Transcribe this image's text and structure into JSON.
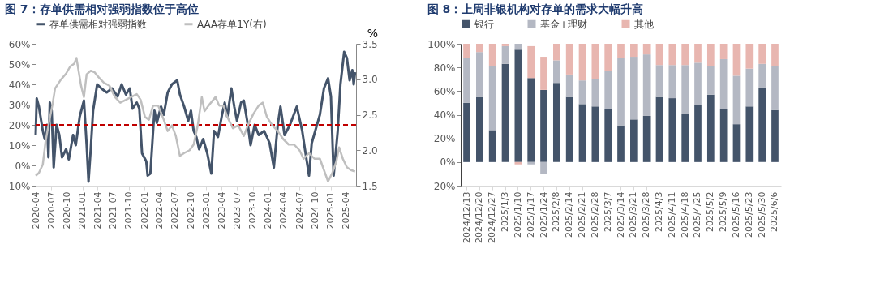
{
  "chart_data": [
    {
      "type": "line",
      "title": "图 7：存单供需相对强弱指数位于高位",
      "y2label": "%",
      "legend": "top",
      "grid": false,
      "line_style": "solid",
      "marker": "none",
      "xlim": [
        "2020-04-01",
        "2025-05-31"
      ],
      "xticks": [
        "2020-04",
        "2020-07",
        "2020-10",
        "2021-01",
        "2021-04",
        "2021-07",
        "2021-10",
        "2022-01",
        "2022-04",
        "2022-07",
        "2022-10",
        "2023-01",
        "2023-04",
        "2023-07",
        "2023-10",
        "2024-01",
        "2024-04",
        "2024-07",
        "2024-10",
        "2025-01",
        "2025-04"
      ],
      "ylim": [
        -10,
        60
      ],
      "yticks": [
        {
          "value": -10,
          "label": "-10%"
        },
        {
          "value": 0,
          "label": "0%"
        },
        {
          "value": 10,
          "label": "10%"
        },
        {
          "value": 20,
          "label": "20%"
        },
        {
          "value": 30,
          "label": "30%"
        },
        {
          "value": 40,
          "label": "40%"
        },
        {
          "value": 50,
          "label": "50%"
        },
        {
          "value": 60,
          "label": "60%"
        }
      ],
      "y2lim": [
        1.5,
        3.5
      ],
      "y2ticks": [
        {
          "value": 1.5,
          "label": "1.5"
        },
        {
          "value": 2,
          "label": "2.0"
        },
        {
          "value": 2.5,
          "label": "2.5"
        },
        {
          "value": 3,
          "label": "3.0"
        },
        {
          "value": 3.5,
          "label": "3.5"
        }
      ],
      "ref_lines": [
        {
          "axis": "y",
          "value": 20,
          "color": "#c00000",
          "line_style": "dashed"
        }
      ],
      "series": [
        {
          "name": "存单供需相对强弱指数",
          "color": "#44546a",
          "x": [
            "2020-04-01",
            "2020-04-07",
            "2020-04-20",
            "2020-05-13",
            "2020-05-24",
            "2020-06-07",
            "2020-06-15",
            "2020-06-23",
            "2020-07-04",
            "2020-07-16",
            "2020-08-02",
            "2020-08-18",
            "2020-09-03",
            "2020-09-27",
            "2020-10-13",
            "2020-11-07",
            "2020-11-23",
            "2020-12-16",
            "2021-01-10",
            "2021-01-26",
            "2021-02-06",
            "2021-02-19",
            "2021-03-05",
            "2021-03-29",
            "2021-04-22",
            "2021-05-24",
            "2021-06-25",
            "2021-07-27",
            "2021-08-20",
            "2021-09-14",
            "2021-10-07",
            "2021-10-23",
            "2021-11-17",
            "2021-12-02",
            "2021-12-18",
            "2022-01-12",
            "2022-01-20",
            "2022-02-05",
            "2022-03-01",
            "2022-03-15",
            "2022-04-09",
            "2022-04-25",
            "2022-05-18",
            "2022-06-12",
            "2022-07-13",
            "2022-07-29",
            "2022-08-23",
            "2022-09-16",
            "2022-10-02",
            "2022-10-18",
            "2022-11-03",
            "2022-11-19",
            "2022-12-13",
            "2023-01-06",
            "2023-01-30",
            "2023-02-15",
            "2023-03-10",
            "2023-04-03",
            "2023-04-19",
            "2023-05-04",
            "2023-05-28",
            "2023-06-14",
            "2023-06-30",
            "2023-07-24",
            "2023-08-09",
            "2023-09-02",
            "2023-09-18",
            "2023-10-12",
            "2023-11-05",
            "2023-12-07",
            "2024-01-08",
            "2024-02-02",
            "2024-02-25",
            "2024-03-12",
            "2024-04-05",
            "2024-05-07",
            "2024-06-16",
            "2024-07-18",
            "2024-08-03",
            "2024-08-27",
            "2024-09-12",
            "2024-10-06",
            "2024-10-30",
            "2024-11-23",
            "2024-12-17",
            "2025-01-03",
            "2025-01-19",
            "2025-02-12",
            "2025-02-28",
            "2025-03-22",
            "2025-04-07",
            "2025-04-23",
            "2025-05-09",
            "2025-05-17",
            "2025-05-25"
          ],
          "values": [
            15,
            33,
            29,
            17,
            13,
            20,
            4,
            31,
            27,
            -1,
            20,
            15,
            4,
            8,
            3,
            15,
            10,
            24,
            32,
            10,
            -8,
            8,
            27,
            40,
            38,
            36,
            38,
            34,
            40,
            35,
            38,
            28,
            31,
            28,
            6,
            2,
            -5,
            -4,
            27,
            21,
            29,
            25,
            36,
            40,
            42,
            35,
            29,
            22,
            27,
            17,
            14,
            8,
            13,
            6,
            -4,
            17,
            14,
            25,
            31,
            24,
            38,
            29,
            22,
            31,
            32,
            20,
            10,
            20,
            15,
            17,
            11,
            -1,
            20,
            29,
            15,
            20,
            29,
            17,
            8,
            -5,
            11,
            18,
            25,
            38,
            43,
            34,
            -5,
            17,
            40,
            56,
            53,
            42,
            47,
            40,
            46
          ]
        },
        {
          "name": "AAA存单1Y(右)",
          "color": "#bfbfbf",
          "axis": "y2",
          "x": [
            "2020-04-01",
            "2020-04-20",
            "2020-05-13",
            "2020-05-29",
            "2020-06-15",
            "2020-07-08",
            "2020-07-24",
            "2020-08-26",
            "2020-09-27",
            "2020-10-21",
            "2020-11-14",
            "2020-11-27",
            "2020-12-08",
            "2020-12-24",
            "2021-01-10",
            "2021-01-26",
            "2021-02-19",
            "2021-03-13",
            "2021-04-06",
            "2021-05-08",
            "2021-06-09",
            "2021-07-11",
            "2021-08-12",
            "2021-09-14",
            "2021-10-15",
            "2021-11-17",
            "2021-12-10",
            "2022-01-04",
            "2022-01-28",
            "2022-02-21",
            "2022-03-23",
            "2022-04-25",
            "2022-05-18",
            "2022-06-12",
            "2022-07-05",
            "2022-07-29",
            "2022-08-23",
            "2022-09-24",
            "2022-10-18",
            "2022-11-11",
            "2022-12-05",
            "2022-12-21",
            "2023-01-14",
            "2023-02-24",
            "2023-03-17",
            "2023-04-11",
            "2023-05-04",
            "2023-06-06",
            "2023-07-07",
            "2023-08-09",
            "2023-09-02",
            "2023-10-04",
            "2023-11-05",
            "2023-11-29",
            "2023-12-23",
            "2024-01-24",
            "2024-02-25",
            "2024-03-27",
            "2024-04-29",
            "2024-05-31",
            "2024-07-02",
            "2024-07-26",
            "2024-08-27",
            "2024-09-28",
            "2024-10-30",
            "2024-11-23",
            "2024-12-17",
            "2025-01-11",
            "2025-02-04",
            "2025-02-20",
            "2025-03-14",
            "2025-04-07",
            "2025-05-01",
            "2025-05-25"
          ],
          "values": [
            1.64,
            1.68,
            1.8,
            2.12,
            2.35,
            2.63,
            2.87,
            2.99,
            3.08,
            3.18,
            3.22,
            3.3,
            3.14,
            2.91,
            2.75,
            3.07,
            3.12,
            3.1,
            3.03,
            2.95,
            2.91,
            2.75,
            2.67,
            2.71,
            2.75,
            2.79,
            2.71,
            2.47,
            2.43,
            2.63,
            2.63,
            2.43,
            2.27,
            2.35,
            2.2,
            1.92,
            1.96,
            2.0,
            2.08,
            2.35,
            2.75,
            2.55,
            2.63,
            2.75,
            2.63,
            2.63,
            2.47,
            2.31,
            2.35,
            2.2,
            2.35,
            2.51,
            2.63,
            2.67,
            2.47,
            2.35,
            2.27,
            2.16,
            2.08,
            2.08,
            2.0,
            1.88,
            1.96,
            1.88,
            1.88,
            1.72,
            1.56,
            1.68,
            1.84,
            2.04,
            1.88,
            1.76,
            1.72,
            1.7
          ]
        }
      ]
    },
    {
      "type": "bar",
      "stacked": true,
      "title": "图 8：上周非银机构对存单的需求大幅升高",
      "legend": "top",
      "grid": false,
      "categories": [
        "2024/12/13",
        "2024/12/20",
        "2024/12/27",
        "2025/1/3",
        "2025/1/10",
        "2025/1/17",
        "2025/1/24",
        "2025/2/8",
        "2025/2/14",
        "2025/2/21",
        "2025/2/28",
        "2025/3/7",
        "2025/3/14",
        "2025/3/21",
        "2025/3/28",
        "2025/4/3",
        "2025/4/11",
        "2025/4/18",
        "2025/4/25",
        "2025/5/2",
        "2025/5/9",
        "2025/5/16",
        "2025/5/23",
        "2025/5/30",
        "2025/6/6"
      ],
      "ylim": [
        -20,
        100
      ],
      "yticks": [
        {
          "value": -20,
          "label": "-20%"
        },
        {
          "value": 0,
          "label": "0%"
        },
        {
          "value": 20,
          "label": "20%"
        },
        {
          "value": 40,
          "label": "40%"
        },
        {
          "value": 60,
          "label": "60%"
        },
        {
          "value": 80,
          "label": "80%"
        },
        {
          "value": 100,
          "label": "100%"
        }
      ],
      "series": [
        {
          "name": "银行",
          "color": "#44546a",
          "values": [
            50,
            55,
            27,
            83,
            95,
            71,
            61,
            67,
            55,
            49,
            47,
            45,
            31,
            36,
            39,
            55,
            54,
            41,
            48,
            57,
            45,
            32,
            47,
            63,
            44
          ]
        },
        {
          "name": "基金+理财",
          "color": "#b4b8c3",
          "values": [
            38,
            38,
            54,
            15,
            5,
            -2,
            -10,
            19,
            19,
            20,
            23,
            32,
            57,
            53,
            52,
            27,
            28,
            41,
            36,
            24,
            42,
            41,
            32,
            20,
            37
          ]
        },
        {
          "name": "其他",
          "color": "#e8b6b0",
          "values": [
            12,
            7,
            19,
            2,
            -2,
            27,
            28,
            14,
            26,
            31,
            30,
            23,
            12,
            11,
            9,
            18,
            18,
            18,
            16,
            19,
            13,
            27,
            21,
            17,
            19
          ]
        }
      ]
    }
  ]
}
